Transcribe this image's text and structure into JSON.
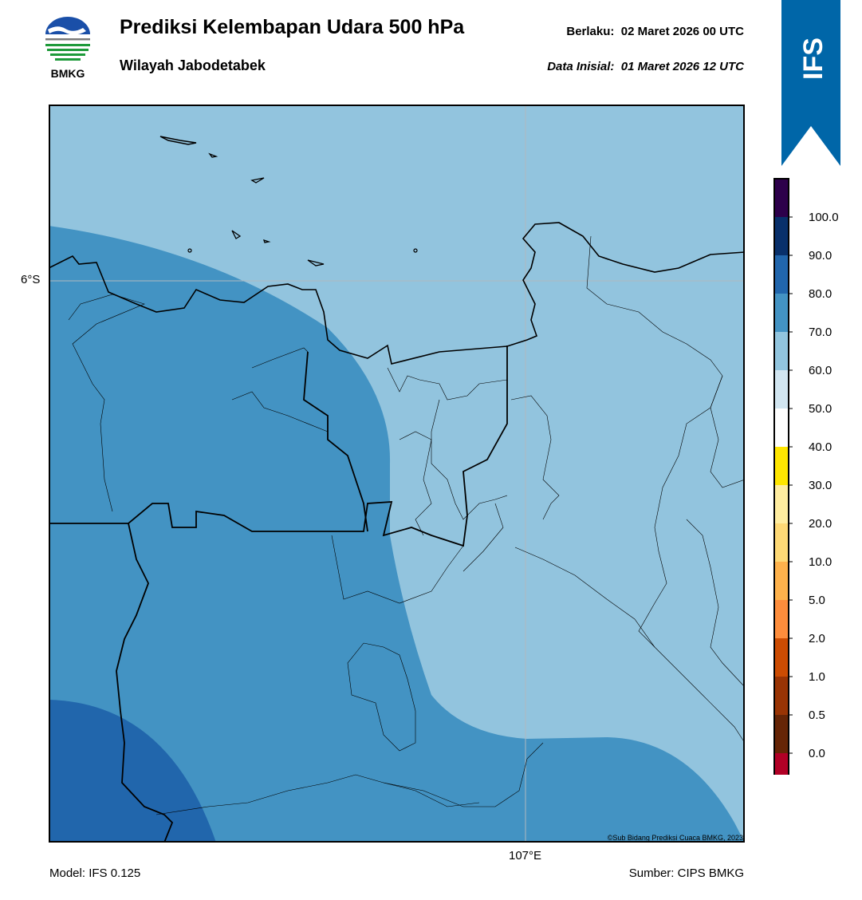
{
  "header": {
    "title": "Prediksi Kelembapan Udara 500 hPa",
    "subtitle": "Wilayah Jabodetabek",
    "valid_label": "Berlaku:",
    "valid_value": "02 Maret 2026 00 UTC",
    "init_label": "Data Inisial:",
    "init_value": "01 Maret 2026 12 UTC"
  },
  "logo": {
    "text": "BMKG",
    "icon": "bmkg-logo"
  },
  "model_badge": {
    "text": "IFS",
    "color": "#0066a8"
  },
  "map": {
    "lat_tick": "6°S",
    "lon_tick": "107°E",
    "copyright": "©Sub Bidang Prediksi Cuaca BMKG, 2023",
    "zone_colors": {
      "60-70": "#92c4de",
      "70-80": "#4393c3",
      "80-90": "#2166ac"
    }
  },
  "colorbar": {
    "ticks": [
      "100.0",
      "90.0",
      "80.0",
      "70.0",
      "60.0",
      "50.0",
      "40.0",
      "30.0",
      "20.0",
      "10.0",
      "5.0",
      "2.0",
      "1.0",
      "0.5",
      "0.0"
    ],
    "colors": [
      "#2d004b",
      "#08306b",
      "#2166ac",
      "#4393c3",
      "#92c5de",
      "#d1e5f0",
      "#ffffff",
      "#ffe600",
      "#ffeda0",
      "#fed976",
      "#feb24c",
      "#fd8d3c",
      "#cc4c02",
      "#993404",
      "#662506",
      "#b10026",
      "#e31a1c"
    ]
  },
  "footer": {
    "model": "Model: IFS 0.125",
    "source": "Sumber: CIPS BMKG"
  }
}
